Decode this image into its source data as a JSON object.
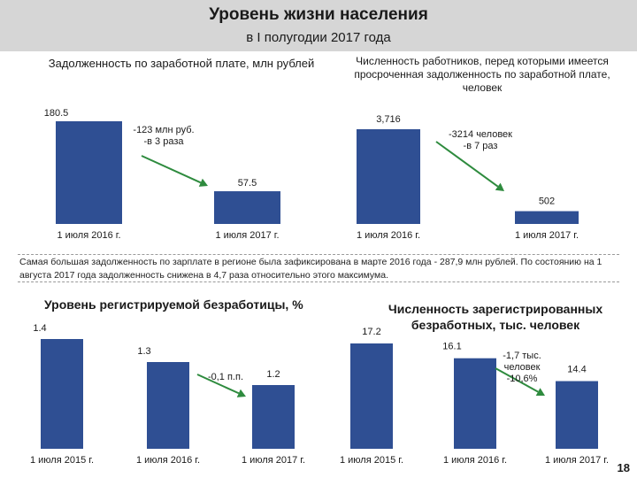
{
  "header": {
    "title": "Уровень жизни населения",
    "subtitle": "в I полугодии 2017 года"
  },
  "note": {
    "text": "Самая большая задолженность по зарплате в регионе была зафиксирована в марте 2016 года - 287,9 млн рублей. По состоянию на 1 августа 2017 года задолженность снижена в 4,7 раза относительно этого максимума."
  },
  "page_number": "18",
  "colors": {
    "bar": "#2f4f93",
    "arrow": "#2e8b3e",
    "header": "#d6d6d6"
  },
  "chart_data": [
    {
      "type": "bar",
      "title": "Задолженность по заработной плате, млн рублей",
      "categories": [
        "1 июля 2016 г.",
        "1 июля 2017 г."
      ],
      "values": [
        180.5,
        57.5
      ],
      "value_labels": [
        "180.5",
        "57.5"
      ],
      "ylim": [
        0,
        180.5
      ],
      "annotation": [
        "-123 млн руб.",
        "-в 3 раза"
      ]
    },
    {
      "type": "bar",
      "title": "Численность работников, перед которыми имеется просроченная задолженность по заработной плате, человек",
      "categories": [
        "1 июля 2016 г.",
        "1 июля 2017 г."
      ],
      "values": [
        3716,
        502
      ],
      "value_labels": [
        "3,716",
        "502"
      ],
      "ylim": [
        0,
        3716
      ],
      "annotation": [
        "-3214 человек",
        "-в 7 раз"
      ]
    },
    {
      "type": "bar",
      "title": "Уровень регистрируемой безработицы, %",
      "categories": [
        "1 июля 2015 г.",
        "1 июля 2016 г.",
        "1 июля 2017 г."
      ],
      "values": [
        1.4,
        1.3,
        1.2
      ],
      "value_labels": [
        "1.4",
        "1.3",
        "1.2"
      ],
      "ylim": [
        1.0,
        1.4
      ],
      "annotation": [
        "-0,1 п.п."
      ]
    },
    {
      "type": "bar",
      "title": "Численность зарегистрированных безработных, тыс. человек",
      "categories": [
        "1 июля 2015 г.",
        "1 июля 2016 г.",
        "1 июля 2017 г."
      ],
      "values": [
        17.2,
        16.1,
        14.4
      ],
      "value_labels": [
        "17.2",
        "16.1",
        "14.4"
      ],
      "ylim": [
        12.0,
        17.2
      ],
      "annotation": [
        "-1,7 тыс.",
        "человек",
        "-10,6%"
      ]
    }
  ]
}
